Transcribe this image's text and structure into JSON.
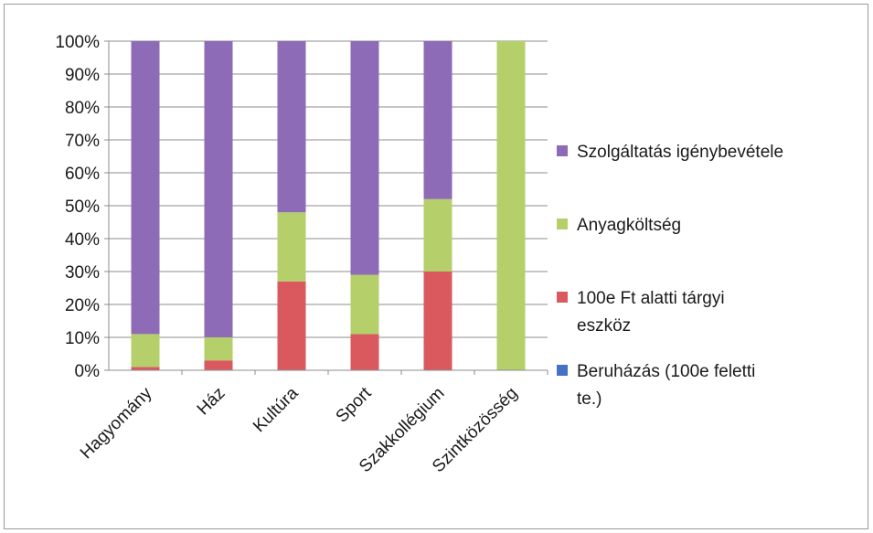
{
  "chart_data": {
    "type": "bar",
    "stacked": true,
    "percent": true,
    "categories": [
      "Hagyomány",
      "Ház",
      "Kultúra",
      "Sport",
      "Szakkollégium",
      "Szintközösség"
    ],
    "series": [
      {
        "name": "Beruházás (100e feletti te.)",
        "color": "#4472c4",
        "values": [
          0,
          0,
          0,
          0,
          0,
          0
        ]
      },
      {
        "name": "100e Ft alatti tárgyi eszköz",
        "color": "#d9595f",
        "values": [
          1,
          3,
          27,
          11,
          30,
          0
        ]
      },
      {
        "name": "Anyagköltség",
        "color": "#b5cf6a",
        "values": [
          10,
          7,
          21,
          18,
          22,
          100
        ]
      },
      {
        "name": "Szolgáltatás igénybevétele",
        "color": "#8e6bb7",
        "values": [
          89,
          90,
          52,
          71,
          48,
          0
        ]
      }
    ],
    "ylim": [
      0,
      100
    ],
    "yticks": [
      "0%",
      "10%",
      "20%",
      "30%",
      "40%",
      "50%",
      "60%",
      "70%",
      "80%",
      "90%",
      "100%"
    ],
    "grid": true,
    "legend_position": "right",
    "legend_lines": [
      [
        "Szolgáltatás igénybevétele"
      ],
      [
        "Anyagköltség"
      ],
      [
        "100e Ft alatti tárgyi",
        "eszköz"
      ],
      [
        "Beruházás (100e feletti",
        "te.)"
      ]
    ]
  }
}
